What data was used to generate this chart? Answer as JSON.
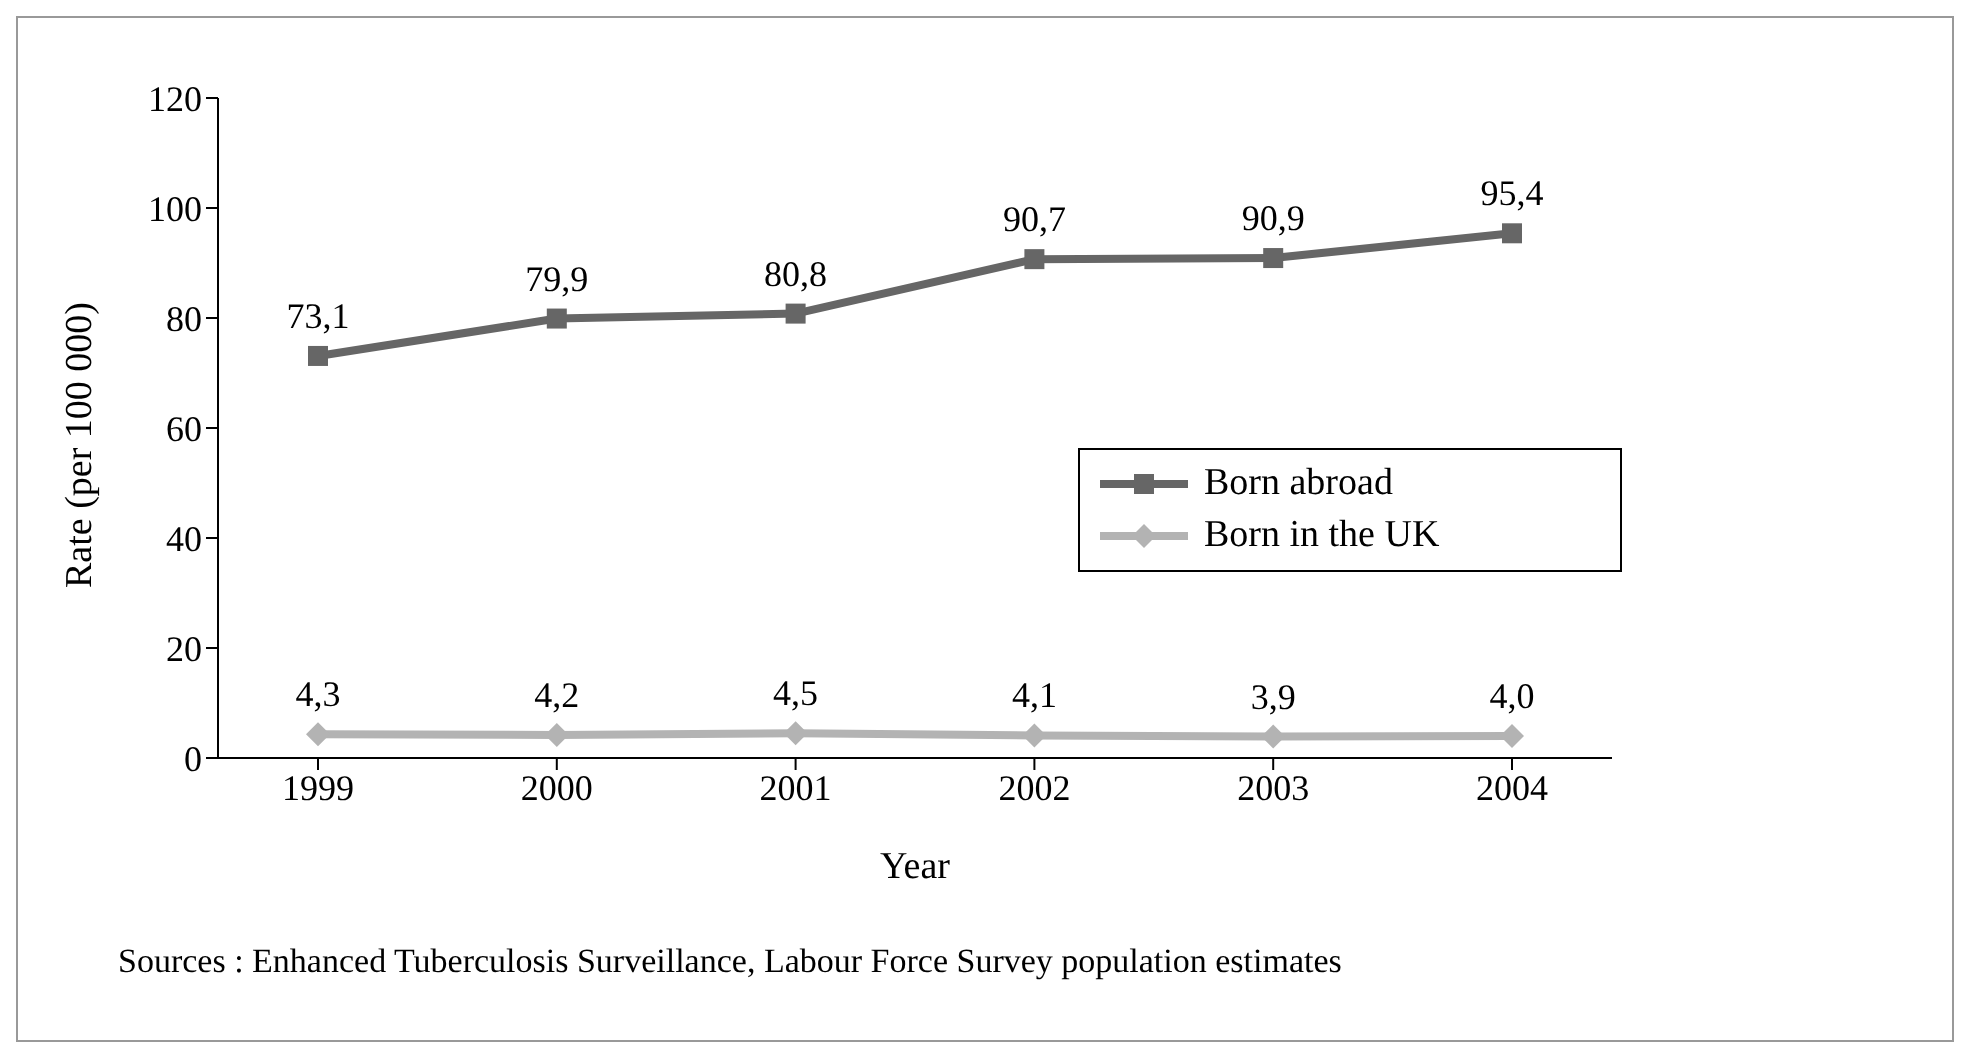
{
  "chart_data": {
    "type": "line",
    "xlabel": "Year",
    "ylabel": "Rate (per 100 000)",
    "categories": [
      "1999",
      "2000",
      "2001",
      "2002",
      "2003",
      "2004"
    ],
    "series": [
      {
        "name": "Born abroad",
        "color": "#666666",
        "marker": "square",
        "values": [
          73.1,
          79.9,
          80.8,
          90.7,
          90.9,
          95.4
        ],
        "value_labels": [
          "73,1",
          "79,9",
          "80,8",
          "90,7",
          "90,9",
          "95,4"
        ]
      },
      {
        "name": "Born in the UK",
        "color": "#b3b3b3",
        "marker": "diamond",
        "values": [
          4.3,
          4.2,
          4.5,
          4.1,
          3.9,
          4.0
        ],
        "value_labels": [
          "4,3",
          "4,2",
          "4,5",
          "4,1",
          "3,9",
          "4,0"
        ]
      }
    ],
    "ylim": [
      0,
      120
    ],
    "yticks": [
      0,
      20,
      40,
      60,
      80,
      100,
      120
    ],
    "grid": false,
    "legend": "right",
    "line_style": "solid",
    "annotations": [
      "Sources : Enhanced Tuberculosis Surveillance, Labour Force Survey population estimates"
    ]
  }
}
